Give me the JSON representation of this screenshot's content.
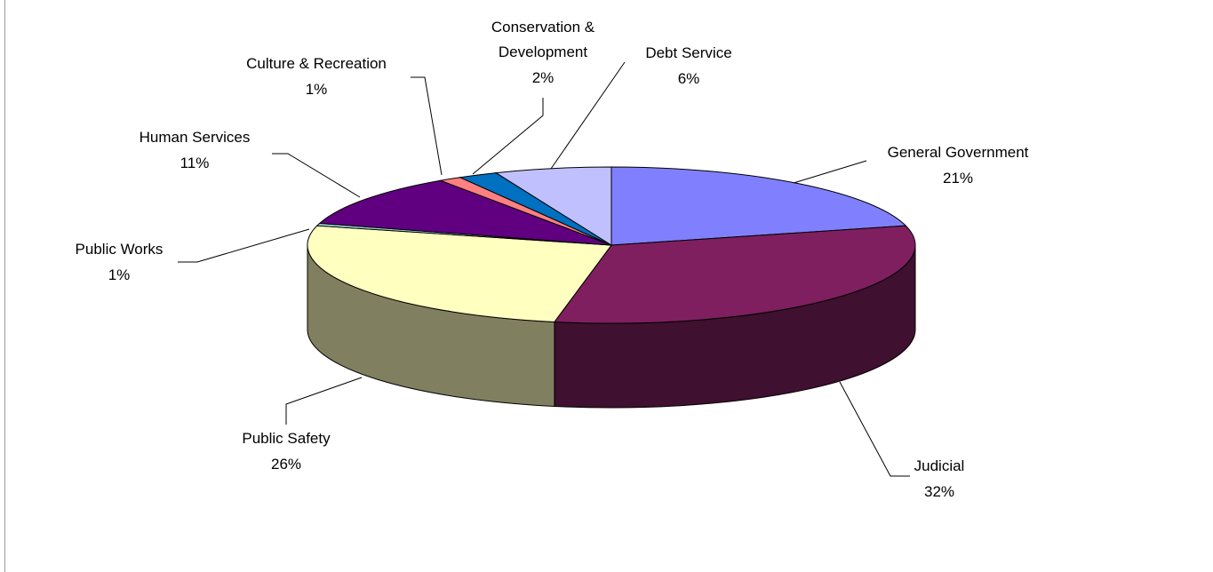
{
  "chart_data": {
    "type": "pie",
    "title": "",
    "style": "3d-exploded-none",
    "legend": "none",
    "data_labels": "category-and-percent-with-leader-lines",
    "slices": [
      {
        "label": "General Government",
        "percent_label": "21%",
        "value": 21,
        "color": "#8080ff",
        "side_color": "#40407f"
      },
      {
        "label": "Judicial",
        "percent_label": "32%",
        "value": 32,
        "color": "#7f1f5f",
        "side_color": "#3f102f"
      },
      {
        "label": "Public Safety",
        "percent_label": "26%",
        "value": 26,
        "color": "#ffffc0",
        "side_color": "#808060"
      },
      {
        "label": "Public Works",
        "percent_label": "1%",
        "value": 0.5,
        "color": "#a0e0e0",
        "side_color": "#507070"
      },
      {
        "label": "Human Services",
        "percent_label": "11%",
        "value": 11,
        "color": "#600080",
        "side_color": "#300040"
      },
      {
        "label": "Culture & Recreation",
        "percent_label": "1%",
        "value": 1.2,
        "color": "#ff8080",
        "side_color": "#804040"
      },
      {
        "label": "Conservation & Development",
        "percent_label": "2%",
        "value": 2.1,
        "color": "#0070c0",
        "side_color": "#003860"
      },
      {
        "label": "Debt Service",
        "percent_label": "6%",
        "value": 6.2,
        "color": "#c0c0ff",
        "side_color": "#606080"
      }
    ]
  }
}
